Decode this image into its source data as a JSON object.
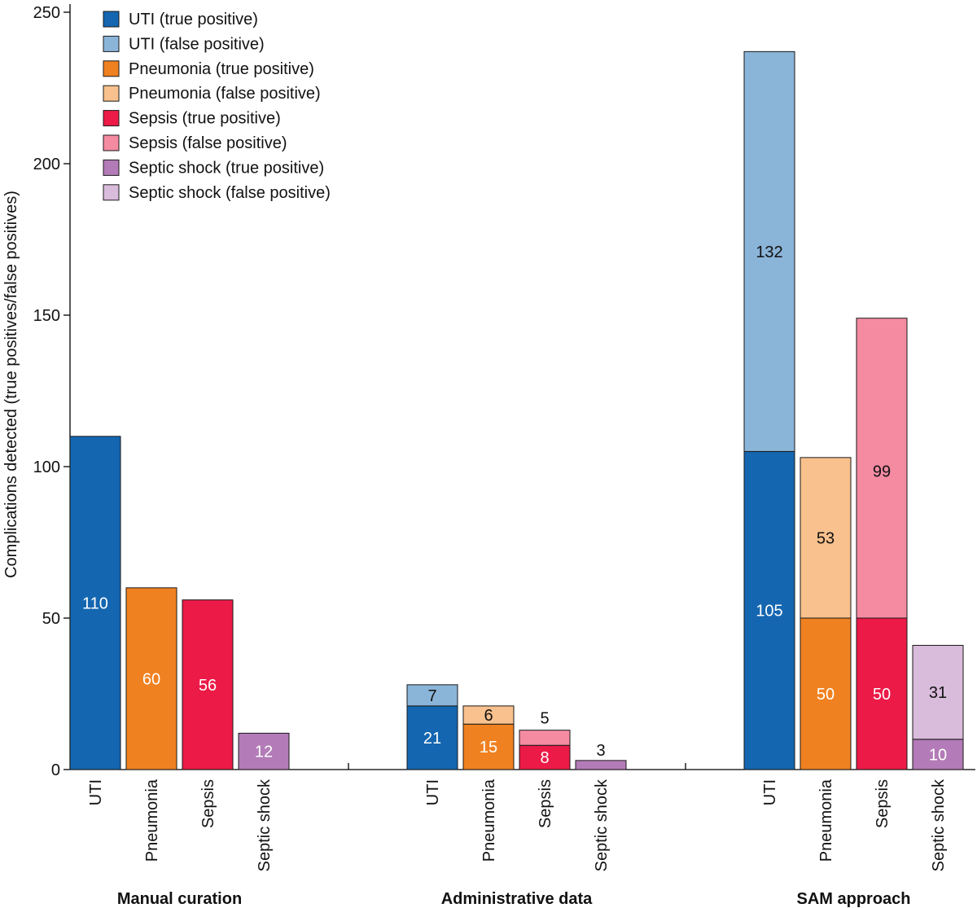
{
  "chart_data": {
    "type": "bar",
    "stacked": true,
    "ylabel": "Complications detected (true positives/false positives)",
    "ylim": [
      0,
      250
    ],
    "yticks": [
      0,
      50,
      100,
      150,
      200,
      250
    ],
    "grid": false,
    "legend_position": "top-left",
    "legend": [
      {
        "label": "UTI (true positive)",
        "color": "#1466b0"
      },
      {
        "label": "UTI (false positive)",
        "color": "#8bb4d9"
      },
      {
        "label": "Pneumonia (true positive)",
        "color": "#f08120"
      },
      {
        "label": "Pneumonia (false positive)",
        "color": "#f8c18d"
      },
      {
        "label": "Sepsis (true positive)",
        "color": "#eb1a47"
      },
      {
        "label": "Sepsis (false positive)",
        "color": "#f48ba1"
      },
      {
        "label": "Septic shock (true positive)",
        "color": "#b37bb7"
      },
      {
        "label": "Septic shock (false positive)",
        "color": "#d9bbdb"
      }
    ],
    "groups": [
      {
        "name": "Manual curation",
        "bars": [
          {
            "category": "UTI",
            "true_positive": 110,
            "false_positive": 0,
            "tp_label": "110",
            "fp_label": "",
            "tp_color": "#1466b0",
            "fp_color": "#8bb4d9"
          },
          {
            "category": "Pneumonia",
            "true_positive": 60,
            "false_positive": 0,
            "tp_label": "60",
            "fp_label": "",
            "tp_color": "#f08120",
            "fp_color": "#f8c18d"
          },
          {
            "category": "Sepsis",
            "true_positive": 56,
            "false_positive": 0,
            "tp_label": "56",
            "fp_label": "",
            "tp_color": "#eb1a47",
            "fp_color": "#f48ba1"
          },
          {
            "category": "Septic shock",
            "true_positive": 12,
            "false_positive": 0,
            "tp_label": "12",
            "fp_label": "",
            "tp_color": "#b37bb7",
            "fp_color": "#d9bbdb"
          }
        ]
      },
      {
        "name": "Administrative data",
        "bars": [
          {
            "category": "UTI",
            "true_positive": 21,
            "false_positive": 7,
            "tp_label": "21",
            "fp_label": "7",
            "tp_color": "#1466b0",
            "fp_color": "#8bb4d9"
          },
          {
            "category": "Pneumonia",
            "true_positive": 15,
            "false_positive": 6,
            "tp_label": "15",
            "fp_label": "6",
            "tp_color": "#f08120",
            "fp_color": "#f8c18d"
          },
          {
            "category": "Sepsis",
            "true_positive": 8,
            "false_positive": 5,
            "tp_label": "8",
            "fp_label": "5",
            "tp_color": "#eb1a47",
            "fp_color": "#f48ba1"
          },
          {
            "category": "Septic shock",
            "true_positive": 3,
            "false_positive": 0,
            "tp_label": "3",
            "fp_label": "",
            "tp_color": "#b37bb7",
            "fp_color": "#d9bbdb"
          }
        ]
      },
      {
        "name": "SAM approach",
        "bars": [
          {
            "category": "UTI",
            "true_positive": 105,
            "false_positive": 132,
            "tp_label": "105",
            "fp_label": "132",
            "tp_color": "#1466b0",
            "fp_color": "#8bb4d9"
          },
          {
            "category": "Pneumonia",
            "true_positive": 50,
            "false_positive": 53,
            "tp_label": "50",
            "fp_label": "53",
            "tp_color": "#f08120",
            "fp_color": "#f8c18d"
          },
          {
            "category": "Sepsis",
            "true_positive": 50,
            "false_positive": 99,
            "tp_label": "50",
            "fp_label": "99",
            "tp_color": "#eb1a47",
            "fp_color": "#f48ba1"
          },
          {
            "category": "Septic shock",
            "true_positive": 10,
            "false_positive": 31,
            "tp_label": "10",
            "fp_label": "31",
            "tp_color": "#b37bb7",
            "fp_color": "#d9bbdb"
          }
        ]
      }
    ]
  }
}
